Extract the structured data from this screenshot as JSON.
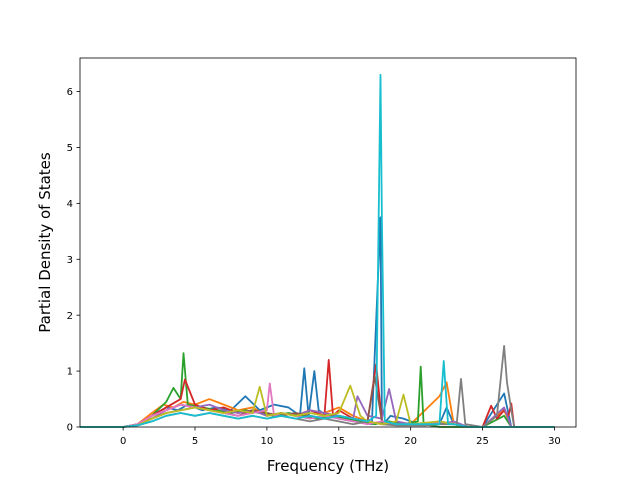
{
  "chart_data": {
    "type": "line",
    "title": "",
    "xlabel": "Frequency (THz)",
    "ylabel": "Partial Density of States",
    "xlim": [
      -3,
      31.5
    ],
    "ylim": [
      0,
      6.6
    ],
    "xticks": [
      0,
      5,
      10,
      15,
      20,
      25,
      30
    ],
    "yticks": [
      0,
      1,
      2,
      3,
      4,
      5,
      6
    ],
    "grid": false,
    "legend": "none",
    "series": [
      {
        "color": "#1f77b4",
        "x": [
          -3.0,
          0.0,
          1.0,
          2.0,
          3.0,
          3.8,
          4.5,
          5.5,
          6.5,
          7.5,
          8.5,
          9.5,
          10.5,
          11.5,
          12.3,
          12.6,
          12.9,
          13.3,
          13.6,
          14.2,
          15.0,
          16.0,
          17.3,
          17.9,
          18.0,
          18.1,
          18.6,
          19.5,
          20.5,
          22.0,
          22.5,
          23.0,
          24.0,
          25.0,
          26.5,
          27.0,
          28.0,
          30.0
        ],
        "y": [
          0.0,
          0.0,
          0.05,
          0.2,
          0.35,
          0.3,
          0.4,
          0.3,
          0.35,
          0.3,
          0.55,
          0.3,
          0.4,
          0.35,
          0.2,
          1.05,
          0.2,
          1.0,
          0.3,
          0.2,
          0.15,
          0.1,
          0.05,
          3.75,
          0.1,
          0.05,
          0.2,
          0.15,
          0.05,
          0.05,
          0.35,
          0.05,
          0.0,
          0.0,
          0.6,
          0.0,
          0.0,
          0.0
        ]
      },
      {
        "color": "#ff7f0e",
        "x": [
          -3.0,
          0.0,
          1.0,
          2.0,
          2.8,
          3.5,
          4.2,
          5.0,
          6.0,
          7.0,
          8.0,
          9.0,
          10.0,
          11.0,
          12.0,
          13.0,
          14.0,
          15.0,
          16.0,
          17.0,
          18.0,
          19.0,
          20.0,
          22.0,
          22.5,
          23.0,
          24.0,
          25.0,
          26.5,
          27.0,
          28.0,
          30.0
        ],
        "y": [
          0.0,
          0.0,
          0.05,
          0.25,
          0.4,
          0.35,
          0.45,
          0.4,
          0.5,
          0.4,
          0.3,
          0.35,
          0.2,
          0.25,
          0.2,
          0.3,
          0.25,
          0.35,
          0.2,
          0.1,
          0.05,
          0.1,
          0.05,
          0.55,
          0.8,
          0.05,
          0.0,
          0.0,
          0.3,
          0.0,
          0.0,
          0.0
        ]
      },
      {
        "color": "#2ca02c",
        "x": [
          -3.0,
          0.0,
          1.0,
          2.0,
          3.0,
          3.5,
          4.0,
          4.2,
          4.5,
          5.5,
          6.5,
          7.5,
          8.5,
          9.5,
          10.5,
          11.5,
          12.5,
          13.5,
          14.5,
          15.5,
          16.5,
          17.5,
          18.5,
          19.5,
          20.5,
          20.7,
          20.9,
          22.0,
          25.0,
          26.5,
          27.0,
          30.0
        ],
        "y": [
          0.0,
          0.0,
          0.05,
          0.2,
          0.45,
          0.7,
          0.5,
          1.32,
          0.4,
          0.35,
          0.3,
          0.25,
          0.3,
          0.25,
          0.2,
          0.25,
          0.2,
          0.15,
          0.2,
          0.15,
          0.1,
          0.05,
          0.1,
          0.05,
          0.1,
          1.08,
          0.05,
          0.0,
          0.0,
          0.2,
          0.0,
          0.0
        ]
      },
      {
        "color": "#d62728",
        "x": [
          -3.0,
          0.0,
          1.0,
          2.0,
          3.0,
          4.0,
          4.3,
          5.0,
          6.0,
          7.0,
          8.0,
          9.0,
          10.0,
          11.0,
          12.0,
          13.0,
          14.0,
          14.3,
          14.6,
          15.0,
          16.0,
          17.0,
          17.6,
          18.0,
          19.0,
          21.0,
          22.0,
          23.0,
          24.0,
          25.0,
          25.6,
          26.0,
          26.5,
          26.8,
          27.0,
          27.2,
          30.0
        ],
        "y": [
          0.0,
          0.0,
          0.05,
          0.2,
          0.35,
          0.5,
          0.85,
          0.4,
          0.3,
          0.35,
          0.25,
          0.3,
          0.2,
          0.25,
          0.2,
          0.3,
          0.2,
          1.2,
          0.2,
          0.3,
          0.15,
          0.1,
          1.12,
          0.1,
          0.05,
          0.05,
          0.1,
          0.05,
          0.0,
          0.0,
          0.38,
          0.15,
          0.3,
          0.2,
          0.42,
          0.0,
          0.0
        ]
      },
      {
        "color": "#9467bd",
        "x": [
          -3.0,
          0.0,
          1.0,
          2.0,
          3.0,
          4.0,
          5.0,
          6.0,
          7.0,
          8.0,
          9.0,
          10.0,
          11.0,
          12.0,
          13.0,
          14.0,
          15.0,
          16.0,
          16.3,
          17.0,
          18.0,
          18.5,
          19.0,
          20.0,
          22.0,
          23.0,
          24.0,
          25.0,
          26.5,
          27.0,
          30.0
        ],
        "y": [
          0.0,
          0.0,
          0.05,
          0.15,
          0.3,
          0.4,
          0.35,
          0.4,
          0.3,
          0.25,
          0.3,
          0.2,
          0.25,
          0.2,
          0.3,
          0.25,
          0.2,
          0.15,
          0.55,
          0.2,
          0.15,
          0.68,
          0.1,
          0.05,
          0.05,
          0.1,
          0.0,
          0.0,
          0.35,
          0.0,
          0.0
        ]
      },
      {
        "color": "#8c564b",
        "x": [
          -3.0,
          0.0,
          1.0,
          2.0,
          3.0,
          4.0,
          5.0,
          6.0,
          7.0,
          8.0,
          9.0,
          10.0,
          11.0,
          12.0,
          13.0,
          14.0,
          15.0,
          16.0,
          17.0,
          17.5,
          18.0,
          19.0,
          21.0,
          22.0,
          23.0,
          24.0,
          25.0,
          27.0,
          30.0
        ],
        "y": [
          0.0,
          0.0,
          0.03,
          0.15,
          0.25,
          0.3,
          0.35,
          0.3,
          0.25,
          0.2,
          0.3,
          0.25,
          0.2,
          0.25,
          0.2,
          0.15,
          0.2,
          0.15,
          0.1,
          0.9,
          0.1,
          0.05,
          0.05,
          0.1,
          0.05,
          0.0,
          0.0,
          0.0,
          0.0
        ]
      },
      {
        "color": "#e377c2",
        "x": [
          -3.0,
          0.0,
          1.0,
          2.0,
          3.0,
          4.0,
          5.0,
          6.0,
          7.0,
          8.0,
          9.0,
          10.0,
          10.2,
          10.5,
          11.0,
          12.0,
          13.0,
          14.0,
          15.0,
          16.0,
          17.0,
          18.0,
          19.0,
          21.0,
          22.0,
          23.0,
          24.0,
          25.0,
          27.0,
          30.0
        ],
        "y": [
          0.0,
          0.0,
          0.05,
          0.2,
          0.3,
          0.4,
          0.35,
          0.3,
          0.25,
          0.2,
          0.25,
          0.3,
          0.78,
          0.2,
          0.25,
          0.2,
          0.15,
          0.2,
          0.15,
          0.1,
          0.05,
          0.1,
          0.05,
          0.05,
          0.1,
          0.05,
          0.0,
          0.0,
          0.0,
          0.0
        ]
      },
      {
        "color": "#7f7f7f",
        "x": [
          -3.0,
          0.0,
          1.0,
          2.0,
          3.0,
          4.0,
          5.0,
          6.0,
          7.0,
          8.0,
          9.0,
          10.0,
          11.0,
          12.0,
          13.0,
          14.0,
          15.0,
          16.0,
          17.0,
          18.0,
          19.0,
          21.0,
          22.0,
          23.2,
          23.5,
          23.8,
          25.0,
          26.0,
          26.5,
          26.7,
          27.0,
          27.2,
          30.0
        ],
        "y": [
          0.0,
          0.0,
          0.03,
          0.1,
          0.2,
          0.25,
          0.2,
          0.25,
          0.2,
          0.15,
          0.2,
          0.15,
          0.2,
          0.15,
          0.1,
          0.15,
          0.1,
          0.05,
          0.1,
          0.05,
          0.03,
          0.03,
          0.05,
          0.05,
          0.86,
          0.05,
          0.0,
          0.2,
          1.45,
          0.8,
          0.3,
          0.0,
          0.0
        ]
      },
      {
        "color": "#bcbd22",
        "x": [
          -3.0,
          0.0,
          1.0,
          2.0,
          3.0,
          4.0,
          5.0,
          6.0,
          7.0,
          8.0,
          9.0,
          9.5,
          10.0,
          11.0,
          12.0,
          13.0,
          14.0,
          15.0,
          15.8,
          16.5,
          17.0,
          18.0,
          19.0,
          19.5,
          20.0,
          22.0,
          23.0,
          24.0,
          25.0,
          27.0,
          30.0
        ],
        "y": [
          0.0,
          0.0,
          0.03,
          0.15,
          0.25,
          0.3,
          0.35,
          0.3,
          0.25,
          0.3,
          0.25,
          0.72,
          0.2,
          0.25,
          0.2,
          0.25,
          0.2,
          0.25,
          0.74,
          0.2,
          0.1,
          0.05,
          0.1,
          0.58,
          0.05,
          0.1,
          0.05,
          0.0,
          0.0,
          0.0,
          0.0
        ]
      },
      {
        "color": "#17becf",
        "x": [
          -3.0,
          0.0,
          1.0,
          2.0,
          3.0,
          4.0,
          5.0,
          6.0,
          7.0,
          8.0,
          9.0,
          10.0,
          11.0,
          12.0,
          13.0,
          14.0,
          15.0,
          16.0,
          17.0,
          17.6,
          17.9,
          18.0,
          18.2,
          19.0,
          20.0,
          22.0,
          22.3,
          22.6,
          23.0,
          24.0,
          25.0,
          27.0,
          30.0
        ],
        "y": [
          0.0,
          0.0,
          0.03,
          0.1,
          0.2,
          0.25,
          0.2,
          0.25,
          0.2,
          0.15,
          0.2,
          0.15,
          0.2,
          0.15,
          0.2,
          0.15,
          0.2,
          0.15,
          0.1,
          0.2,
          6.3,
          3.7,
          0.1,
          0.05,
          0.05,
          0.05,
          1.18,
          0.05,
          0.05,
          0.0,
          0.0,
          0.0,
          0.0
        ]
      }
    ]
  }
}
